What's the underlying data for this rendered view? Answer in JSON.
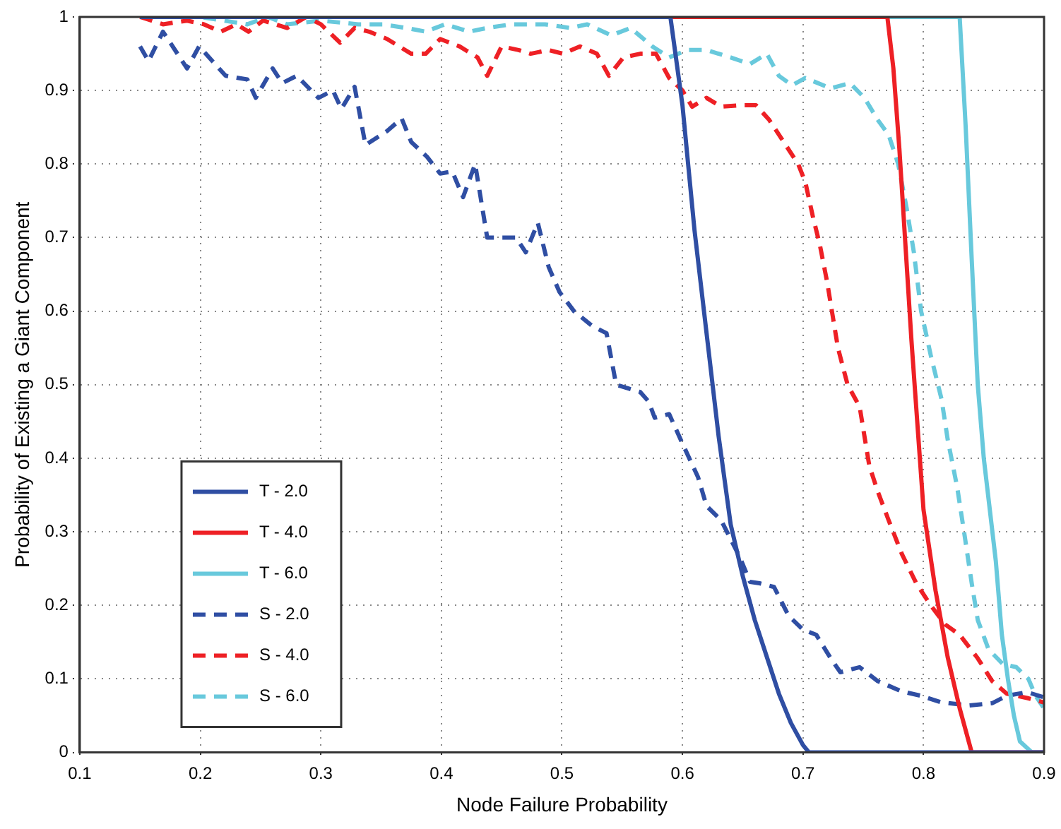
{
  "chart_data": {
    "type": "line",
    "xlabel": "Node Failure Probability",
    "ylabel": "Probability of Existing a Giant Component",
    "xlim": [
      0.1,
      0.9
    ],
    "xticks": [
      0.1,
      0.2,
      0.3,
      0.4,
      0.5,
      0.6,
      0.7,
      0.8,
      0.9
    ],
    "ylim": [
      0,
      1
    ],
    "yticks": [
      0,
      0.1,
      0.2,
      0.3,
      0.4,
      0.5,
      0.6,
      0.7,
      0.8,
      0.9,
      1
    ],
    "grid": true,
    "legend": "bottom left",
    "marker": "none",
    "series": [
      {
        "name": "T - 2.0",
        "color": "#2f4ea3",
        "line_style": "solid",
        "x": [
          0.15,
          0.59,
          0.6,
          0.61,
          0.62,
          0.63,
          0.64,
          0.65,
          0.66,
          0.67,
          0.68,
          0.69,
          0.7,
          0.705,
          0.9
        ],
        "values": [
          1,
          1,
          0.88,
          0.71,
          0.57,
          0.43,
          0.31,
          0.24,
          0.18,
          0.13,
          0.08,
          0.04,
          0.01,
          0,
          0
        ]
      },
      {
        "name": "T - 4.0",
        "color": "#ee2025",
        "line_style": "solid",
        "x": [
          0.15,
          0.77,
          0.775,
          0.78,
          0.79,
          0.8,
          0.81,
          0.82,
          0.83,
          0.84,
          0.9
        ],
        "values": [
          1,
          1,
          0.93,
          0.82,
          0.56,
          0.33,
          0.22,
          0.13,
          0.06,
          0,
          0
        ]
      },
      {
        "name": "T - 6.0",
        "color": "#68c9dc",
        "line_style": "solid",
        "x": [
          0.15,
          0.83,
          0.835,
          0.84,
          0.845,
          0.85,
          0.855,
          0.86,
          0.865,
          0.87,
          0.875,
          0.88,
          0.89,
          0.9
        ],
        "values": [
          1,
          1,
          0.85,
          0.67,
          0.5,
          0.4,
          0.33,
          0.26,
          0.16,
          0.1,
          0.05,
          0.015,
          0,
          0
        ]
      },
      {
        "name": "S - 2.0",
        "color": "#2f4ea3",
        "line_style": "dashed",
        "x": [
          0.15,
          0.157,
          0.169,
          0.189,
          0.199,
          0.221,
          0.239,
          0.246,
          0.26,
          0.268,
          0.28,
          0.298,
          0.31,
          0.317,
          0.328,
          0.337,
          0.355,
          0.367,
          0.375,
          0.388,
          0.399,
          0.409,
          0.418,
          0.428,
          0.438,
          0.452,
          0.462,
          0.47,
          0.48,
          0.489,
          0.498,
          0.51,
          0.525,
          0.537,
          0.545,
          0.565,
          0.572,
          0.577,
          0.589,
          0.6,
          0.613,
          0.62,
          0.632,
          0.64,
          0.648,
          0.656,
          0.664,
          0.676,
          0.688,
          0.7,
          0.711,
          0.723,
          0.731,
          0.747,
          0.762,
          0.782,
          0.798,
          0.815,
          0.838,
          0.857,
          0.869,
          0.886,
          0.9
        ],
        "values": [
          0.96,
          0.94,
          0.98,
          0.93,
          0.96,
          0.92,
          0.915,
          0.89,
          0.93,
          0.91,
          0.92,
          0.89,
          0.9,
          0.875,
          0.905,
          0.826,
          0.845,
          0.862,
          0.83,
          0.81,
          0.787,
          0.79,
          0.755,
          0.8,
          0.7,
          0.7,
          0.7,
          0.68,
          0.72,
          0.66,
          0.626,
          0.6,
          0.58,
          0.57,
          0.5,
          0.49,
          0.477,
          0.455,
          0.46,
          0.42,
          0.374,
          0.335,
          0.316,
          0.29,
          0.264,
          0.232,
          0.23,
          0.225,
          0.186,
          0.167,
          0.16,
          0.128,
          0.109,
          0.116,
          0.097,
          0.083,
          0.077,
          0.068,
          0.064,
          0.067,
          0.077,
          0.082,
          0.075
        ]
      },
      {
        "name": "S - 4.0",
        "color": "#ee2025",
        "line_style": "dashed",
        "x": [
          0.15,
          0.169,
          0.189,
          0.203,
          0.217,
          0.23,
          0.24,
          0.252,
          0.272,
          0.288,
          0.3,
          0.316,
          0.328,
          0.34,
          0.355,
          0.375,
          0.387,
          0.399,
          0.415,
          0.43,
          0.438,
          0.45,
          0.464,
          0.474,
          0.489,
          0.501,
          0.515,
          0.529,
          0.539,
          0.551,
          0.565,
          0.578,
          0.589,
          0.6,
          0.608,
          0.62,
          0.632,
          0.648,
          0.661,
          0.672,
          0.684,
          0.696,
          0.702,
          0.708,
          0.714,
          0.72,
          0.724,
          0.729,
          0.737,
          0.747,
          0.755,
          0.762,
          0.771,
          0.782,
          0.794,
          0.806,
          0.818,
          0.83,
          0.845,
          0.857,
          0.869,
          0.886,
          0.9
        ],
        "values": [
          1,
          0.99,
          0.995,
          0.99,
          0.98,
          0.99,
          0.98,
          0.995,
          0.985,
          1,
          0.99,
          0.965,
          0.985,
          0.98,
          0.97,
          0.95,
          0.95,
          0.97,
          0.96,
          0.945,
          0.92,
          0.96,
          0.955,
          0.95,
          0.955,
          0.95,
          0.96,
          0.95,
          0.92,
          0.945,
          0.95,
          0.95,
          0.917,
          0.9,
          0.878,
          0.89,
          0.878,
          0.88,
          0.88,
          0.86,
          0.83,
          0.8,
          0.775,
          0.73,
          0.69,
          0.64,
          0.6,
          0.55,
          0.5,
          0.47,
          0.39,
          0.355,
          0.316,
          0.27,
          0.23,
          0.2,
          0.174,
          0.16,
          0.128,
          0.097,
          0.08,
          0.074,
          0.068
        ]
      },
      {
        "name": "S - 6.0",
        "color": "#68c9dc",
        "line_style": "dashed",
        "x": [
          0.15,
          0.2,
          0.239,
          0.256,
          0.272,
          0.3,
          0.331,
          0.351,
          0.371,
          0.387,
          0.403,
          0.423,
          0.438,
          0.458,
          0.474,
          0.486,
          0.507,
          0.521,
          0.541,
          0.557,
          0.575,
          0.589,
          0.604,
          0.62,
          0.64,
          0.656,
          0.67,
          0.68,
          0.691,
          0.702,
          0.723,
          0.739,
          0.751,
          0.762,
          0.771,
          0.779,
          0.786,
          0.792,
          0.798,
          0.806,
          0.815,
          0.82,
          0.828,
          0.834,
          0.84,
          0.845,
          0.854,
          0.866,
          0.877,
          0.887,
          0.893,
          0.9
        ],
        "values": [
          1,
          1,
          0.99,
          1,
          0.99,
          0.995,
          0.99,
          0.99,
          0.985,
          0.98,
          0.99,
          0.98,
          0.985,
          0.99,
          0.99,
          0.99,
          0.985,
          0.99,
          0.975,
          0.985,
          0.96,
          0.945,
          0.955,
          0.955,
          0.945,
          0.936,
          0.95,
          0.92,
          0.907,
          0.917,
          0.903,
          0.91,
          0.89,
          0.86,
          0.84,
          0.8,
          0.74,
          0.68,
          0.6,
          0.54,
          0.48,
          0.426,
          0.36,
          0.296,
          0.23,
          0.18,
          0.14,
          0.12,
          0.116,
          0.1,
          0.077,
          0.06
        ]
      }
    ]
  }
}
